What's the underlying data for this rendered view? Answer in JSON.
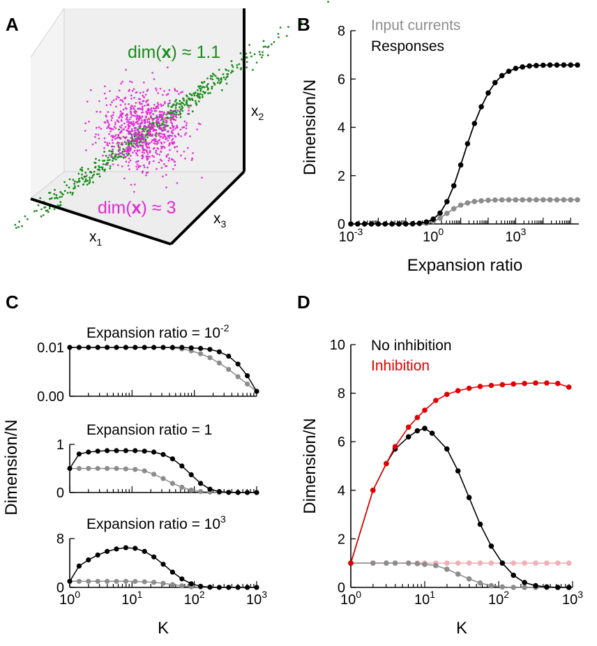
{
  "colors": {
    "black": "#000000",
    "gray": "#8c8c8c",
    "red": "#e00000",
    "pink": "#f2b0b5",
    "green": "#1a8c1a",
    "magenta": "#e22ad6"
  },
  "panels": {
    "A": "A",
    "B": "B",
    "C": "C",
    "D": "D"
  },
  "panel_a": {
    "green_label_prefix": "dim(",
    "green_label_bold": "x",
    "green_label_suffix": ") ≈ 1.1",
    "magenta_label_prefix": "dim(",
    "magenta_label_bold": "x",
    "magenta_label_suffix": ") ≈ 3",
    "axis_x1": "x",
    "axis_x1_sub": "1",
    "axis_x2": "x",
    "axis_x2_sub": "2",
    "axis_x3": "x",
    "axis_x3_sub": "3"
  },
  "chart_data": [
    {
      "id": "B",
      "type": "line",
      "xlabel": "Expansion ratio",
      "ylabel": "Dimension/N",
      "xscale": "log",
      "xlim": [
        -3,
        5.3
      ],
      "ylim": [
        0,
        8
      ],
      "yticks": [
        "0",
        "2",
        "4",
        "6",
        "8"
      ],
      "xticks": [
        {
          "base": "10",
          "exp": "-3"
        },
        {
          "base": "10",
          "exp": "0"
        },
        {
          "base": "10",
          "exp": "3"
        }
      ],
      "legend": [
        {
          "label": "Input currents",
          "color": "gray"
        },
        {
          "label": "Responses",
          "color": "black"
        }
      ],
      "series": [
        {
          "name": "Input currents",
          "color": "gray",
          "log_x": [
            -3.0,
            -2.75,
            -2.5,
            -2.25,
            -2.0,
            -1.75,
            -1.5,
            -1.25,
            -1.0,
            -0.75,
            -0.5,
            -0.25,
            0.0,
            0.25,
            0.5,
            0.75,
            1.0,
            1.25,
            1.5,
            1.75,
            2.0,
            2.25,
            2.5,
            2.75,
            3.0,
            3.25,
            3.5,
            3.75,
            4.0,
            4.25,
            4.5,
            4.75,
            5.0,
            5.25
          ],
          "values": [
            0,
            0,
            0,
            0,
            0,
            0,
            0,
            0,
            0.001,
            0.003,
            0.01,
            0.03,
            0.1,
            0.24,
            0.44,
            0.63,
            0.78,
            0.87,
            0.93,
            0.96,
            0.98,
            0.99,
            0.995,
            1,
            1,
            1,
            1,
            1,
            1,
            1,
            1,
            1,
            1,
            1
          ]
        },
        {
          "name": "Responses",
          "color": "black",
          "log_x": [
            -3.0,
            -2.75,
            -2.5,
            -2.25,
            -2.0,
            -1.75,
            -1.5,
            -1.25,
            -1.0,
            -0.75,
            -0.5,
            -0.25,
            0.0,
            0.25,
            0.5,
            0.75,
            1.0,
            1.25,
            1.5,
            1.75,
            2.0,
            2.25,
            2.5,
            2.75,
            3.0,
            3.25,
            3.5,
            3.75,
            4.0,
            4.25,
            4.5,
            4.75,
            5.0,
            5.25
          ],
          "values": [
            0,
            0,
            0,
            0,
            0,
            0,
            0,
            0.001,
            0.003,
            0.01,
            0.03,
            0.08,
            0.2,
            0.45,
            0.92,
            1.58,
            2.44,
            3.32,
            4.16,
            4.85,
            5.42,
            5.85,
            6.14,
            6.32,
            6.44,
            6.5,
            6.54,
            6.56,
            6.57,
            6.58,
            6.58,
            6.58,
            6.58,
            6.58
          ]
        }
      ]
    },
    {
      "id": "C1",
      "type": "line",
      "title_prefix": "Expansion ratio = 10",
      "title_exp": "-2",
      "ylabel": "Dimension/N",
      "xscale": "log",
      "xlim": [
        0,
        3
      ],
      "ylim": [
        0,
        0.01
      ],
      "yticks": [
        "0.00",
        "0.01"
      ],
      "log_x": [
        0,
        0.15,
        0.3,
        0.45,
        0.6,
        0.75,
        0.9,
        1.05,
        1.2,
        1.35,
        1.5,
        1.65,
        1.8,
        1.95,
        2.1,
        2.25,
        2.4,
        2.55,
        2.7,
        2.85,
        3.0
      ],
      "series": [
        {
          "name": "",
          "color": "black",
          "values": [
            0.01,
            0.01,
            0.01,
            0.01,
            0.01,
            0.01,
            0.01,
            0.01,
            0.01,
            0.01,
            0.01,
            0.01,
            0.01,
            0.0099,
            0.0098,
            0.0096,
            0.0091,
            0.0082,
            0.0066,
            0.0042,
            0.001
          ]
        },
        {
          "name": "",
          "color": "gray",
          "values": [
            0.01,
            0.01,
            0.01,
            0.01,
            0.01,
            0.01,
            0.01,
            0.01,
            0.01,
            0.01,
            0.01,
            0.0099,
            0.0097,
            0.0093,
            0.0087,
            0.0079,
            0.0068,
            0.0055,
            0.004,
            0.0025,
            0.001
          ]
        }
      ]
    },
    {
      "id": "C2",
      "type": "line",
      "title": "Expansion ratio = 1",
      "xscale": "log",
      "xlim": [
        0,
        3
      ],
      "ylim": [
        0,
        1
      ],
      "yticks": [
        "0",
        "1"
      ],
      "log_x": [
        0,
        0.15,
        0.3,
        0.45,
        0.6,
        0.75,
        0.9,
        1.05,
        1.2,
        1.35,
        1.5,
        1.65,
        1.8,
        1.95,
        2.1,
        2.25,
        2.4,
        2.55,
        2.7,
        2.85,
        3.0
      ],
      "series": [
        {
          "name": "",
          "color": "black",
          "values": [
            0.5,
            0.8,
            0.84,
            0.86,
            0.87,
            0.87,
            0.87,
            0.87,
            0.86,
            0.84,
            0.79,
            0.7,
            0.55,
            0.37,
            0.19,
            0.07,
            0.02,
            0.005,
            0,
            0,
            0
          ]
        },
        {
          "name": "",
          "color": "gray",
          "values": [
            0.5,
            0.5,
            0.5,
            0.5,
            0.5,
            0.5,
            0.49,
            0.48,
            0.45,
            0.38,
            0.29,
            0.19,
            0.11,
            0.05,
            0.02,
            0.01,
            0,
            0,
            0,
            0,
            0
          ]
        }
      ]
    },
    {
      "id": "C3",
      "type": "line",
      "title_prefix": "Expansion ratio = 10",
      "title_exp": "3",
      "xlabel": "K",
      "xscale": "log",
      "xlim": [
        0,
        3
      ],
      "ylim": [
        0,
        8
      ],
      "yticks": [
        "0",
        "8"
      ],
      "xticks": [
        {
          "base": "10",
          "exp": "0"
        },
        {
          "base": "10",
          "exp": "1"
        },
        {
          "base": "10",
          "exp": "2"
        },
        {
          "base": "10",
          "exp": "3"
        }
      ],
      "log_x": [
        0,
        0.15,
        0.3,
        0.45,
        0.6,
        0.75,
        0.9,
        1.05,
        1.2,
        1.35,
        1.5,
        1.65,
        1.8,
        1.95,
        2.1,
        2.25,
        2.4,
        2.55,
        2.7,
        2.85,
        3.0
      ],
      "series": [
        {
          "name": "",
          "color": "black",
          "values": [
            1,
            3.5,
            4.5,
            5.3,
            5.9,
            6.3,
            6.5,
            6.4,
            5.9,
            5.0,
            3.8,
            2.5,
            1.4,
            0.6,
            0.2,
            0.05,
            0,
            0,
            0,
            0,
            0
          ]
        },
        {
          "name": "",
          "color": "gray",
          "values": [
            1,
            1,
            1,
            1,
            1,
            1,
            0.99,
            0.97,
            0.92,
            0.83,
            0.67,
            0.46,
            0.25,
            0.1,
            0.03,
            0,
            0,
            0,
            0,
            0,
            0
          ]
        }
      ]
    },
    {
      "id": "D",
      "type": "line",
      "xlabel": "K",
      "ylabel": "Dimension/N",
      "xscale": "log",
      "xlim": [
        0,
        3
      ],
      "ylim": [
        0,
        10
      ],
      "yticks": [
        "0",
        "2",
        "4",
        "6",
        "8",
        "10"
      ],
      "xticks": [
        {
          "base": "10",
          "exp": "0"
        },
        {
          "base": "10",
          "exp": "1"
        },
        {
          "base": "10",
          "exp": "2"
        },
        {
          "base": "10",
          "exp": "3"
        }
      ],
      "legend": [
        {
          "label": "No inhibition",
          "color": "black"
        },
        {
          "label": "Inhibition",
          "color": "red"
        }
      ],
      "series": [
        {
          "name": "Inhibition",
          "color": "red",
          "log_x": [
            0,
            0.3,
            0.48,
            0.6,
            0.78,
            0.9,
            1.0,
            1.15,
            1.3,
            1.45,
            1.6,
            1.75,
            1.9,
            2.05,
            2.2,
            2.35,
            2.5,
            2.65,
            2.8,
            2.95
          ],
          "values": [
            1,
            4,
            5.1,
            5.8,
            6.6,
            7.0,
            7.3,
            7.7,
            7.95,
            8.1,
            8.2,
            8.28,
            8.32,
            8.35,
            8.38,
            8.4,
            8.42,
            8.42,
            8.4,
            8.25
          ]
        },
        {
          "name": "No inhibition",
          "color": "black",
          "log_x": [
            0,
            0.3,
            0.48,
            0.6,
            0.78,
            0.9,
            1.0,
            1.1,
            1.3,
            1.45,
            1.6,
            1.75,
            1.9,
            2.05,
            2.2,
            2.35,
            2.5,
            2.65,
            2.8,
            2.95
          ],
          "values": [
            1,
            4,
            5.1,
            5.7,
            6.2,
            6.45,
            6.55,
            6.35,
            5.7,
            4.8,
            3.7,
            2.6,
            1.7,
            1.0,
            0.5,
            0.2,
            0.07,
            0.02,
            0,
            0
          ]
        },
        {
          "name": "",
          "color": "gray",
          "log_x": [
            0,
            0.3,
            0.48,
            0.6,
            0.78,
            0.9,
            1.0,
            1.15,
            1.3,
            1.45,
            1.6,
            1.75,
            1.9,
            2.05,
            2.2,
            2.35,
            2.5,
            2.65,
            2.8,
            2.95
          ],
          "values": [
            1,
            1,
            1,
            1,
            1,
            0.98,
            0.95,
            0.9,
            0.75,
            0.55,
            0.35,
            0.18,
            0.07,
            0.02,
            0,
            0,
            0,
            0,
            0,
            0
          ]
        },
        {
          "name": "",
          "color": "pink",
          "log_x": [
            0,
            0.3,
            0.48,
            0.6,
            0.78,
            0.9,
            1.0,
            1.15,
            1.3,
            1.45,
            1.6,
            1.75,
            1.9,
            2.05,
            2.2,
            2.35,
            2.5,
            2.65,
            2.8,
            2.95
          ],
          "values": [
            1,
            1,
            1,
            1,
            1,
            1,
            1,
            1,
            1,
            1,
            1,
            1,
            1,
            1,
            1,
            1,
            1,
            1,
            1,
            1
          ]
        }
      ]
    }
  ]
}
